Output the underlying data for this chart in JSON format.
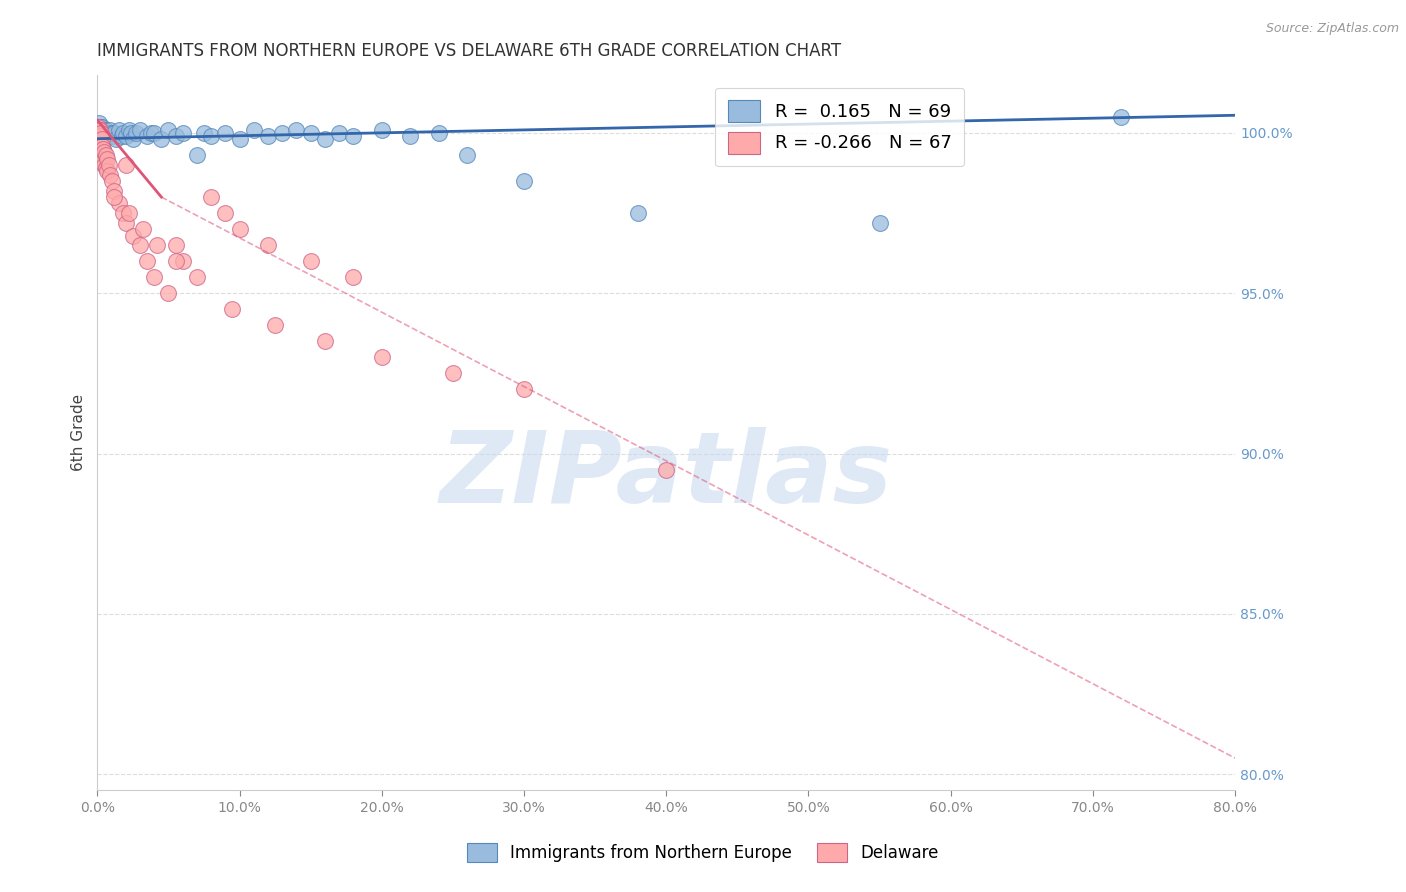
{
  "title": "IMMIGRANTS FROM NORTHERN EUROPE VS DELAWARE 6TH GRADE CORRELATION CHART",
  "source": "Source: ZipAtlas.com",
  "ylabel": "6th Grade",
  "xlim": [
    0.0,
    80.0
  ],
  "ylim": [
    79.5,
    101.8
  ],
  "x_ticks": [
    0.0,
    10.0,
    20.0,
    30.0,
    40.0,
    50.0,
    60.0,
    70.0,
    80.0
  ],
  "y_ticks_right": [
    80.0,
    85.0,
    90.0,
    95.0,
    100.0
  ],
  "blue_R": 0.165,
  "blue_N": 69,
  "pink_R": -0.266,
  "pink_N": 67,
  "blue_color": "#99BBDD",
  "pink_color": "#FFAAAA",
  "blue_edge_color": "#5588BB",
  "pink_edge_color": "#CC6688",
  "blue_line_color": "#3366AA",
  "pink_line_color": "#DD5577",
  "watermark_color": "#C5D8EE",
  "background_color": "#FFFFFF",
  "grid_color": "#DDDDDD",
  "right_axis_color": "#6699CC",
  "title_fontsize": 12,
  "blue_scatter_x": [
    0.1,
    0.1,
    0.15,
    0.15,
    0.15,
    0.2,
    0.2,
    0.2,
    0.25,
    0.25,
    0.3,
    0.3,
    0.3,
    0.3,
    0.35,
    0.35,
    0.4,
    0.4,
    0.4,
    0.5,
    0.5,
    0.5,
    0.6,
    0.6,
    0.7,
    0.7,
    0.8,
    0.9,
    1.0,
    1.0,
    1.2,
    1.3,
    1.5,
    1.7,
    1.8,
    2.0,
    2.2,
    2.4,
    2.5,
    2.7,
    3.0,
    3.5,
    3.8,
    4.0,
    4.5,
    5.0,
    5.5,
    6.0,
    7.0,
    7.5,
    8.0,
    9.0,
    10.0,
    11.0,
    12.0,
    13.0,
    14.0,
    15.0,
    16.0,
    17.0,
    18.0,
    20.0,
    22.0,
    24.0,
    26.0,
    30.0,
    38.0,
    55.0,
    72.0
  ],
  "blue_scatter_y": [
    100.2,
    100.0,
    100.1,
    100.3,
    100.0,
    100.1,
    100.0,
    99.9,
    100.2,
    100.0,
    100.1,
    100.0,
    99.9,
    100.0,
    100.0,
    100.2,
    100.1,
    100.0,
    99.9,
    100.0,
    100.1,
    99.8,
    100.0,
    100.1,
    100.0,
    99.9,
    100.0,
    100.1,
    99.9,
    100.0,
    100.0,
    99.8,
    100.1,
    99.9,
    100.0,
    99.9,
    100.1,
    100.0,
    99.8,
    100.0,
    100.1,
    99.9,
    100.0,
    100.0,
    99.8,
    100.1,
    99.9,
    100.0,
    99.3,
    100.0,
    99.9,
    100.0,
    99.8,
    100.1,
    99.9,
    100.0,
    100.1,
    100.0,
    99.8,
    100.0,
    99.9,
    100.1,
    99.9,
    100.0,
    99.3,
    98.5,
    97.5,
    97.2,
    100.5
  ],
  "pink_scatter_x": [
    0.05,
    0.05,
    0.08,
    0.08,
    0.1,
    0.1,
    0.1,
    0.12,
    0.12,
    0.15,
    0.15,
    0.15,
    0.18,
    0.18,
    0.2,
    0.2,
    0.2,
    0.22,
    0.22,
    0.25,
    0.25,
    0.3,
    0.3,
    0.3,
    0.35,
    0.4,
    0.4,
    0.5,
    0.5,
    0.6,
    0.6,
    0.7,
    0.7,
    0.8,
    0.9,
    1.0,
    1.2,
    1.5,
    1.8,
    2.0,
    2.5,
    3.0,
    3.5,
    4.0,
    5.0,
    5.5,
    6.0,
    2.0,
    8.0,
    9.0,
    10.0,
    12.0,
    15.0,
    18.0,
    1.2,
    2.2,
    3.2,
    4.2,
    5.5,
    7.0,
    9.5,
    12.5,
    16.0,
    20.0,
    25.0,
    30.0,
    40.0
  ],
  "pink_scatter_y": [
    100.1,
    99.9,
    100.2,
    100.0,
    100.1,
    99.8,
    99.6,
    100.0,
    99.7,
    100.1,
    99.9,
    99.5,
    100.0,
    99.6,
    100.1,
    99.8,
    99.4,
    99.9,
    99.5,
    100.0,
    99.6,
    99.8,
    99.5,
    99.2,
    99.6,
    99.5,
    99.2,
    99.4,
    99.0,
    99.3,
    98.9,
    99.2,
    98.8,
    99.0,
    98.7,
    98.5,
    98.2,
    97.8,
    97.5,
    97.2,
    96.8,
    96.5,
    96.0,
    95.5,
    95.0,
    96.5,
    96.0,
    99.0,
    98.0,
    97.5,
    97.0,
    96.5,
    96.0,
    95.5,
    98.0,
    97.5,
    97.0,
    96.5,
    96.0,
    95.5,
    94.5,
    94.0,
    93.5,
    93.0,
    92.5,
    92.0,
    89.5
  ],
  "blue_trend_x0": 0.0,
  "blue_trend_x1": 80.0,
  "blue_trend_y0": 99.82,
  "blue_trend_y1": 100.55,
  "pink_solid_x0": 0.0,
  "pink_solid_x1": 4.5,
  "pink_solid_y0": 100.4,
  "pink_solid_y1": 98.0,
  "pink_dash_x1": 80.0,
  "pink_dash_y1": 80.5
}
